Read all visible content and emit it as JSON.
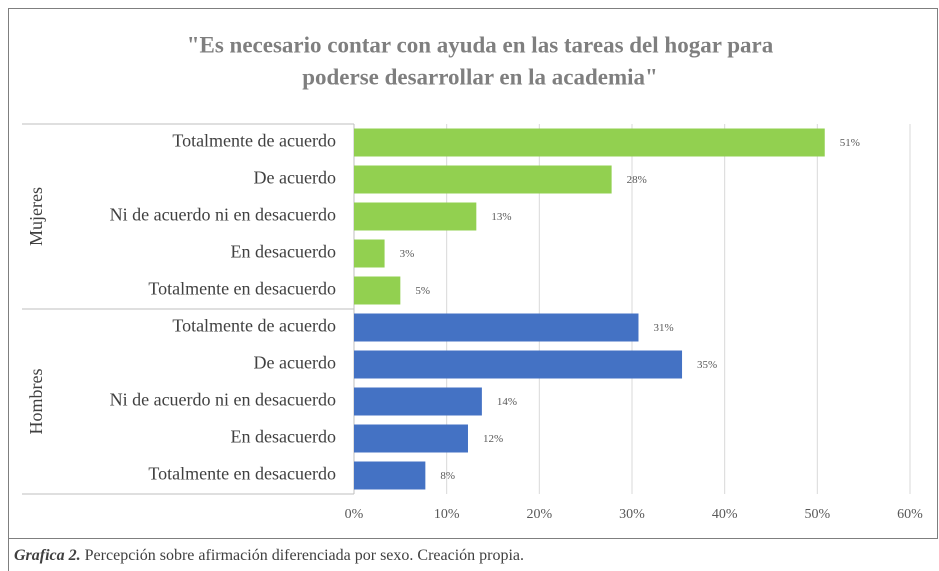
{
  "chart_data": {
    "type": "bar",
    "orientation": "horizontal",
    "title": [
      "\"Es necesario contar con ayuda en las tareas del hogar para",
      "poderse desarrollar en la academia\""
    ],
    "categories": [
      "Totalmente de acuerdo",
      "De acuerdo",
      "Ni de acuerdo ni en desacuerdo",
      "En desacuerdo",
      "Totalmente en desacuerdo"
    ],
    "series": [
      {
        "name": "Mujeres",
        "color": "#92d050",
        "values": [
          50.8,
          27.8,
          13.2,
          3.3,
          5.0
        ],
        "value_labels": [
          "51%",
          "28%",
          "13%",
          "3%",
          "5%"
        ]
      },
      {
        "name": "Hombres",
        "color": "#4472c4",
        "values": [
          30.7,
          35.4,
          13.8,
          12.3,
          7.7
        ],
        "value_labels": [
          "31%",
          "35%",
          "14%",
          "12%",
          "8%"
        ]
      }
    ],
    "xlim": [
      0,
      60
    ],
    "xticks": [
      {
        "value": 0,
        "label": "0%"
      },
      {
        "value": 10,
        "label": "10%"
      },
      {
        "value": 20,
        "label": "20%"
      },
      {
        "value": 30,
        "label": "30%"
      },
      {
        "value": 40,
        "label": "40%"
      },
      {
        "value": 50,
        "label": "50%"
      },
      {
        "value": 60,
        "label": "60%"
      }
    ],
    "grid": true
  },
  "caption": {
    "label": "Grafica 2.",
    "text": "Percepción sobre afirmación diferenciada por sexo. Creación propia."
  }
}
